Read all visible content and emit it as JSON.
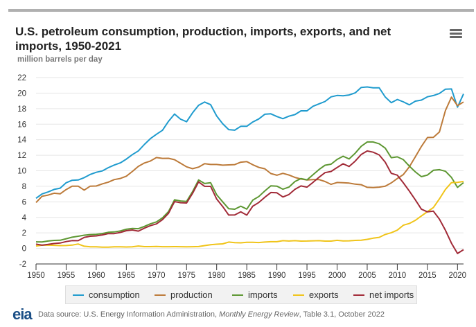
{
  "title": "U.S. petroleum consumption, production, imports, exports, and net imports, 1950-2021",
  "menu_icon": "hamburger-menu-icon",
  "source": {
    "logo": "eia",
    "prefix": "Data source: U.S. Energy Information Administration, ",
    "publication": "Monthly Energy Review",
    "suffix": ", Table 3.1, October 2022"
  },
  "chart_data": {
    "type": "line",
    "title": "U.S. petroleum consumption, production, imports, exports, and net imports, 1950-2021",
    "ylabel": "million barrels per day",
    "xlabel": "",
    "ylim": [
      -2,
      22
    ],
    "yticks": [
      -2,
      0,
      2,
      4,
      6,
      8,
      10,
      12,
      14,
      16,
      18,
      20,
      22
    ],
    "xlim": [
      1950,
      2021
    ],
    "xticks": [
      1950,
      1955,
      1960,
      1965,
      1970,
      1975,
      1980,
      1985,
      1990,
      1995,
      2000,
      2005,
      2010,
      2015,
      2020
    ],
    "grid": true,
    "legend": "bottom",
    "x": [
      1950,
      1951,
      1952,
      1953,
      1954,
      1955,
      1956,
      1957,
      1958,
      1959,
      1960,
      1961,
      1962,
      1963,
      1964,
      1965,
      1966,
      1967,
      1968,
      1969,
      1970,
      1971,
      1972,
      1973,
      1974,
      1975,
      1976,
      1977,
      1978,
      1979,
      1980,
      1981,
      1982,
      1983,
      1984,
      1985,
      1986,
      1987,
      1988,
      1989,
      1990,
      1991,
      1992,
      1993,
      1994,
      1995,
      1996,
      1997,
      1998,
      1999,
      2000,
      2001,
      2002,
      2003,
      2004,
      2005,
      2006,
      2007,
      2008,
      2009,
      2010,
      2011,
      2012,
      2013,
      2014,
      2015,
      2016,
      2017,
      2018,
      2019,
      2020,
      2021
    ],
    "series": [
      {
        "name": "consumption",
        "color": "#1f9bce",
        "values": [
          6.46,
          7.02,
          7.27,
          7.6,
          7.76,
          8.46,
          8.78,
          8.81,
          9.12,
          9.53,
          9.8,
          9.98,
          10.4,
          10.74,
          11.02,
          11.51,
          12.08,
          12.56,
          13.39,
          14.14,
          14.7,
          15.21,
          16.37,
          17.31,
          16.65,
          16.32,
          17.46,
          18.43,
          18.85,
          18.51,
          17.06,
          16.06,
          15.3,
          15.23,
          15.73,
          15.73,
          16.28,
          16.67,
          17.28,
          17.33,
          16.99,
          16.71,
          17.03,
          17.24,
          17.72,
          17.72,
          18.31,
          18.62,
          18.92,
          19.52,
          19.7,
          19.65,
          19.76,
          20.03,
          20.73,
          20.8,
          20.69,
          20.68,
          19.5,
          18.77,
          19.18,
          18.88,
          18.49,
          18.97,
          19.1,
          19.53,
          19.69,
          19.96,
          20.51,
          20.54,
          18.19,
          19.89
        ]
      },
      {
        "name": "production",
        "color": "#bc7a39",
        "values": [
          5.91,
          6.72,
          6.87,
          7.11,
          7.03,
          7.58,
          8.01,
          8.02,
          7.51,
          8.02,
          8.04,
          8.31,
          8.54,
          8.87,
          9.01,
          9.3,
          9.91,
          10.57,
          11.0,
          11.26,
          11.7,
          11.6,
          11.61,
          11.43,
          10.97,
          10.51,
          10.27,
          10.47,
          10.92,
          10.81,
          10.81,
          10.72,
          10.76,
          10.79,
          11.11,
          11.19,
          10.78,
          10.44,
          10.26,
          9.64,
          9.43,
          9.67,
          9.46,
          9.14,
          8.94,
          8.82,
          8.87,
          8.87,
          8.62,
          8.25,
          8.49,
          8.46,
          8.41,
          8.28,
          8.21,
          7.87,
          7.84,
          7.89,
          8.01,
          8.44,
          9.0,
          9.51,
          10.51,
          11.81,
          13.13,
          14.28,
          14.31,
          15.0,
          17.76,
          19.48,
          18.39,
          18.86
        ]
      },
      {
        "name": "imports",
        "color": "#5d9732",
        "values": [
          0.85,
          0.84,
          0.95,
          1.03,
          1.05,
          1.25,
          1.44,
          1.57,
          1.7,
          1.78,
          1.82,
          1.92,
          2.08,
          2.12,
          2.26,
          2.47,
          2.57,
          2.54,
          2.84,
          3.17,
          3.42,
          3.93,
          4.74,
          6.26,
          6.11,
          6.06,
          7.31,
          8.81,
          8.36,
          8.46,
          6.91,
          6.0,
          5.11,
          5.05,
          5.44,
          5.07,
          6.22,
          6.68,
          7.4,
          8.06,
          8.02,
          7.63,
          7.89,
          8.62,
          9.0,
          8.83,
          9.48,
          10.16,
          10.71,
          10.85,
          11.46,
          11.87,
          11.53,
          12.26,
          13.15,
          13.71,
          13.71,
          13.47,
          12.92,
          11.69,
          11.79,
          11.44,
          10.6,
          9.86,
          9.24,
          9.45,
          10.06,
          10.14,
          9.94,
          9.14,
          7.86,
          8.47
        ]
      },
      {
        "name": "exports",
        "color": "#f0c419",
        "values": [
          0.31,
          0.42,
          0.43,
          0.4,
          0.36,
          0.37,
          0.43,
          0.57,
          0.28,
          0.21,
          0.2,
          0.17,
          0.17,
          0.21,
          0.2,
          0.19,
          0.2,
          0.31,
          0.23,
          0.23,
          0.26,
          0.22,
          0.22,
          0.23,
          0.22,
          0.21,
          0.22,
          0.24,
          0.36,
          0.47,
          0.54,
          0.59,
          0.82,
          0.74,
          0.72,
          0.78,
          0.79,
          0.76,
          0.82,
          0.86,
          0.86,
          1.0,
          0.95,
          1.0,
          0.94,
          0.95,
          0.98,
          1.0,
          0.94,
          0.94,
          1.04,
          0.97,
          0.98,
          1.03,
          1.05,
          1.17,
          1.32,
          1.43,
          1.8,
          2.02,
          2.35,
          2.99,
          3.21,
          3.62,
          4.18,
          4.74,
          5.26,
          6.38,
          7.6,
          8.47,
          8.51,
          8.63
        ]
      },
      {
        "name": "net imports",
        "color": "#a12a37",
        "values": [
          0.55,
          0.42,
          0.52,
          0.63,
          0.69,
          0.88,
          1.01,
          1.0,
          1.42,
          1.57,
          1.61,
          1.74,
          1.91,
          1.91,
          2.06,
          2.28,
          2.37,
          2.23,
          2.61,
          2.93,
          3.16,
          3.7,
          4.52,
          6.03,
          5.89,
          5.85,
          7.09,
          8.56,
          8.0,
          7.99,
          6.36,
          5.4,
          4.3,
          4.31,
          4.72,
          4.29,
          5.44,
          5.91,
          6.59,
          7.2,
          7.16,
          6.63,
          6.94,
          7.62,
          8.05,
          7.89,
          8.5,
          9.16,
          9.76,
          9.91,
          10.42,
          10.9,
          10.55,
          11.24,
          12.1,
          12.55,
          12.39,
          12.04,
          11.11,
          9.67,
          9.44,
          8.45,
          7.39,
          6.24,
          5.06,
          4.71,
          4.8,
          3.77,
          2.34,
          0.67,
          -0.65,
          -0.16
        ]
      }
    ]
  },
  "legend": [
    {
      "label": "consumption",
      "color": "#1f9bce"
    },
    {
      "label": "production",
      "color": "#bc7a39"
    },
    {
      "label": "imports",
      "color": "#5d9732"
    },
    {
      "label": "exports",
      "color": "#f0c419"
    },
    {
      "label": "net imports",
      "color": "#a12a37"
    }
  ]
}
